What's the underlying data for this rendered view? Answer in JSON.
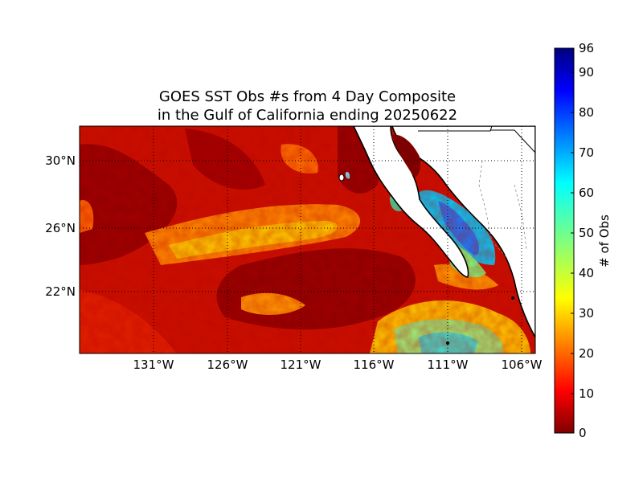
{
  "title": {
    "line1": "GOES SST Obs #s from 4 Day Composite",
    "line2": "in the Gulf of California ending 20250622"
  },
  "map": {
    "lat_labels": [
      "30°N",
      "26°N",
      "22°N"
    ],
    "lon_labels": [
      "131°W",
      "126°W",
      "121°W",
      "116°W",
      "111°W",
      "106°W"
    ],
    "grid": "dotted",
    "land_color": "#ffffff",
    "coastline_color": "#000000"
  },
  "colorbar": {
    "title": "# of Obs",
    "ticks": [
      "96",
      "90",
      "80",
      "70",
      "60",
      "50",
      "40",
      "30",
      "20",
      "10",
      "0"
    ],
    "min": 0,
    "max": 96,
    "colormap": "jet"
  }
}
